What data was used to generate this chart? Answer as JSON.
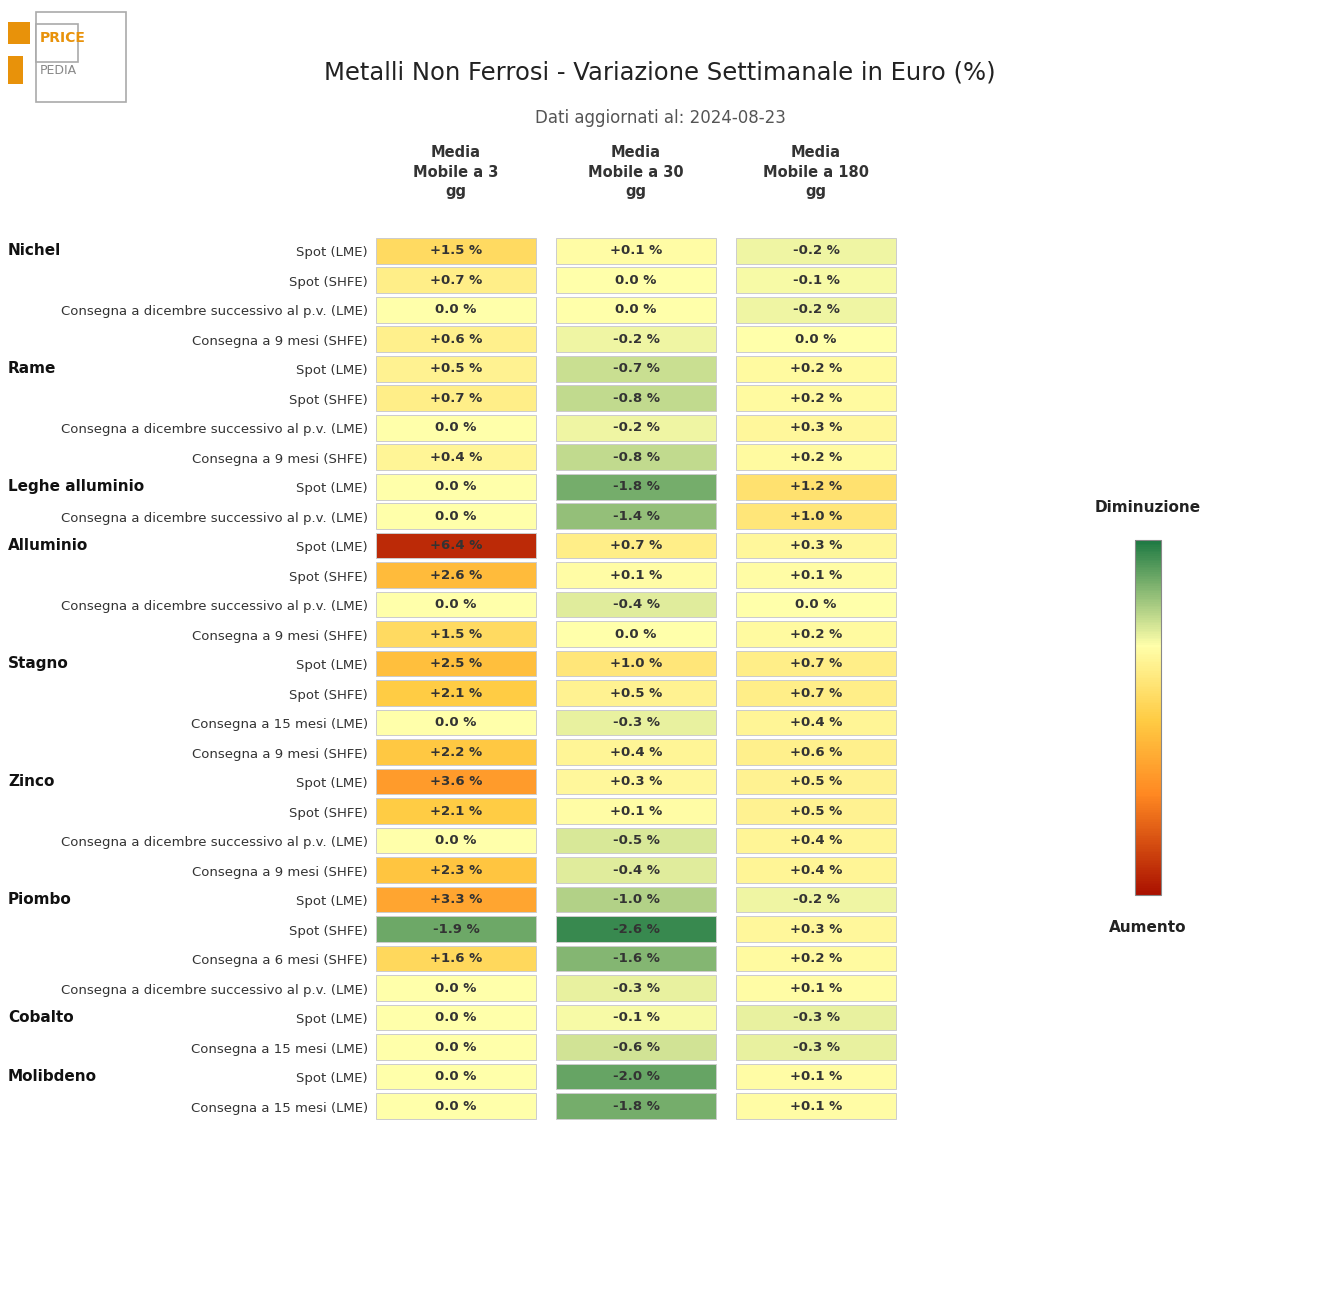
{
  "title": "Metalli Non Ferrosi - Variazione Settimanale in Euro (%)",
  "subtitle": "Dati aggiornati al: 2024-08-23",
  "col_headers": [
    "Media\nMobile a 3\ngg",
    "Media\nMobile a 30\ngg",
    "Media\nMobile a 180\ngg"
  ],
  "rows": [
    {
      "category": "Nichel",
      "label": "Spot (LME)",
      "values": [
        1.5,
        0.1,
        -0.2
      ]
    },
    {
      "category": "",
      "label": "Spot (SHFE)",
      "values": [
        0.7,
        0.0,
        -0.1
      ]
    },
    {
      "category": "",
      "label": "Consegna a dicembre successivo al p.v. (LME)",
      "values": [
        0.0,
        0.0,
        -0.2
      ]
    },
    {
      "category": "",
      "label": "Consegna a 9 mesi (SHFE)",
      "values": [
        0.6,
        -0.2,
        0.0
      ]
    },
    {
      "category": "Rame",
      "label": "Spot (LME)",
      "values": [
        0.5,
        -0.7,
        0.2
      ]
    },
    {
      "category": "",
      "label": "Spot (SHFE)",
      "values": [
        0.7,
        -0.8,
        0.2
      ]
    },
    {
      "category": "",
      "label": "Consegna a dicembre successivo al p.v. (LME)",
      "values": [
        0.0,
        -0.2,
        0.3
      ]
    },
    {
      "category": "",
      "label": "Consegna a 9 mesi (SHFE)",
      "values": [
        0.4,
        -0.8,
        0.2
      ]
    },
    {
      "category": "Leghe alluminio",
      "label": "Spot (LME)",
      "values": [
        0.0,
        -1.8,
        1.2
      ]
    },
    {
      "category": "",
      "label": "Consegna a dicembre successivo al p.v. (LME)",
      "values": [
        0.0,
        -1.4,
        1.0
      ]
    },
    {
      "category": "Alluminio",
      "label": "Spot (LME)",
      "values": [
        6.4,
        0.7,
        0.3
      ]
    },
    {
      "category": "",
      "label": "Spot (SHFE)",
      "values": [
        2.6,
        0.1,
        0.1
      ]
    },
    {
      "category": "",
      "label": "Consegna a dicembre successivo al p.v. (LME)",
      "values": [
        0.0,
        -0.4,
        0.0
      ]
    },
    {
      "category": "",
      "label": "Consegna a 9 mesi (SHFE)",
      "values": [
        1.5,
        0.0,
        0.2
      ]
    },
    {
      "category": "Stagno",
      "label": "Spot (LME)",
      "values": [
        2.5,
        1.0,
        0.7
      ]
    },
    {
      "category": "",
      "label": "Spot (SHFE)",
      "values": [
        2.1,
        0.5,
        0.7
      ]
    },
    {
      "category": "",
      "label": "Consegna a 15 mesi (LME)",
      "values": [
        0.0,
        -0.3,
        0.4
      ]
    },
    {
      "category": "",
      "label": "Consegna a 9 mesi (SHFE)",
      "values": [
        2.2,
        0.4,
        0.6
      ]
    },
    {
      "category": "Zinco",
      "label": "Spot (LME)",
      "values": [
        3.6,
        0.3,
        0.5
      ]
    },
    {
      "category": "",
      "label": "Spot (SHFE)",
      "values": [
        2.1,
        0.1,
        0.5
      ]
    },
    {
      "category": "",
      "label": "Consegna a dicembre successivo al p.v. (LME)",
      "values": [
        0.0,
        -0.5,
        0.4
      ]
    },
    {
      "category": "",
      "label": "Consegna a 9 mesi (SHFE)",
      "values": [
        2.3,
        -0.4,
        0.4
      ]
    },
    {
      "category": "Piombo",
      "label": "Spot (LME)",
      "values": [
        3.3,
        -1.0,
        -0.2
      ]
    },
    {
      "category": "",
      "label": "Spot (SHFE)",
      "values": [
        -1.9,
        -2.6,
        0.3
      ]
    },
    {
      "category": "",
      "label": "Consegna a 6 mesi (SHFE)",
      "values": [
        1.6,
        -1.6,
        0.2
      ]
    },
    {
      "category": "",
      "label": "Consegna a dicembre successivo al p.v. (LME)",
      "values": [
        0.0,
        -0.3,
        0.1
      ]
    },
    {
      "category": "Cobalto",
      "label": "Spot (LME)",
      "values": [
        0.0,
        -0.1,
        -0.3
      ]
    },
    {
      "category": "",
      "label": "Consegna a 15 mesi (LME)",
      "values": [
        0.0,
        -0.6,
        -0.3
      ]
    },
    {
      "category": "Molibdeno",
      "label": "Spot (LME)",
      "values": [
        0.0,
        -2.0,
        0.1
      ]
    },
    {
      "category": "",
      "label": "Consegna a 15 mesi (LME)",
      "values": [
        0.0,
        -1.8,
        0.1
      ]
    }
  ],
  "val_min": -3.0,
  "val_max": 7.0,
  "color_green_dark": "#1a7741",
  "color_green_mid": "#5bbf6f",
  "color_yellow_green": "#c8e89a",
  "color_yellow": "#ffffaa",
  "color_orange_light": "#ffd966",
  "color_orange": "#ffaa44",
  "color_orange_dark": "#ff8822",
  "color_red": "#cc2200",
  "cell_edge_color": "#cccccc",
  "text_color": "#333333",
  "title_color": "#222222",
  "category_color": "#111111",
  "bg_color": "#ffffff"
}
